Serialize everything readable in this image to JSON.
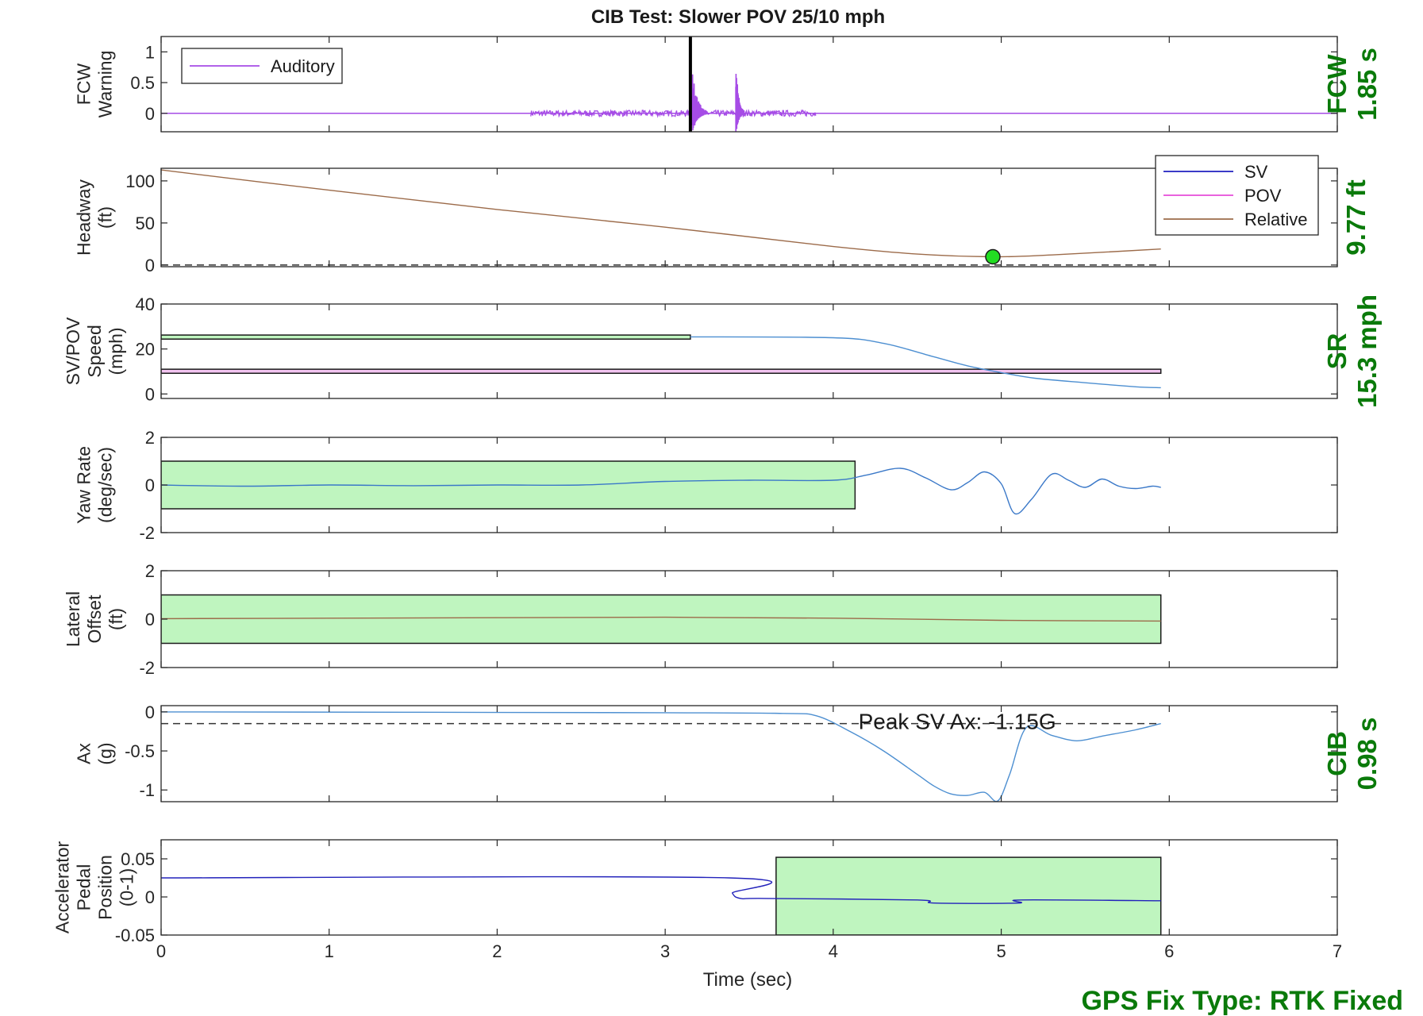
{
  "title": "CIB Test: Slower POV 25/10 mph",
  "xlabel": "Time (sec)",
  "xlim": [
    0,
    7
  ],
  "xticks": [
    "0",
    "1",
    "2",
    "3",
    "4",
    "5",
    "6",
    "7"
  ],
  "footer": "GPS Fix Type: RTK Fixed",
  "colors": {
    "accent_green": "#0a7a0a",
    "band_fill": "#bff5bf",
    "auditory": "#a64ce6",
    "sv": "#1f1fbf",
    "pov": "#e64cd9",
    "relative": "#9c6b4a",
    "speed": "#4d8fd1",
    "accel": "#2222bb"
  },
  "chart_data": [
    {
      "id": "fcw",
      "type": "line",
      "ylabel": [
        "FCW",
        "Warning"
      ],
      "ylim": [
        -0.3,
        1.25
      ],
      "yticks": [
        0,
        0.5,
        1
      ],
      "ytick_labels": [
        "0",
        "0.5",
        "1"
      ],
      "legend": {
        "position": "top-left",
        "entries": [
          {
            "name": "Auditory",
            "color": "#a64ce6"
          }
        ]
      },
      "series": [
        {
          "name": "Auditory",
          "kind": "auditory_burst",
          "t_range": [
            0,
            7
          ],
          "noise_range": [
            2.2,
            3.9
          ],
          "noise_amp": 0.05,
          "bursts": [
            {
              "t": 3.16,
              "t_end": 3.25,
              "peak": 0.75
            },
            {
              "t": 3.42,
              "t_end": 3.47,
              "peak": 0.88
            }
          ]
        }
      ],
      "vline": {
        "x": 3.15,
        "color": "#000000"
      },
      "side_label": [
        "FCW",
        "1.85 s"
      ]
    },
    {
      "id": "headway",
      "type": "line",
      "ylabel": [
        "Headway",
        "(ft)"
      ],
      "ylim": [
        -2,
        115
      ],
      "yticks": [
        0,
        50,
        100
      ],
      "ytick_labels": [
        "0",
        "50",
        "100"
      ],
      "legend": {
        "position": "top-right",
        "entries": [
          {
            "name": "SV",
            "color": "#1f1fbf"
          },
          {
            "name": "POV",
            "color": "#e64cd9"
          },
          {
            "name": "Relative",
            "color": "#9c6b4a"
          }
        ]
      },
      "series": [
        {
          "name": "Relative",
          "color": "#9c6b4a",
          "x": [
            0,
            1,
            2,
            3,
            4,
            4.5,
            4.95,
            5.3,
            5.95
          ],
          "y": [
            113,
            89,
            66,
            45,
            22,
            13,
            9.8,
            12,
            19
          ]
        }
      ],
      "hline": {
        "y": 0,
        "dashed": true,
        "x_range": [
          0,
          5.95
        ]
      },
      "marker": {
        "x": 4.95,
        "y": 9.77,
        "color": "#22dd22"
      },
      "side_label": [
        "9.77 ft"
      ]
    },
    {
      "id": "speed",
      "type": "line",
      "ylabel": [
        "SV/POV",
        "Speed",
        "(mph)"
      ],
      "ylim": [
        -2,
        40
      ],
      "yticks": [
        0,
        20,
        40
      ],
      "ytick_labels": [
        "0",
        "20",
        "40"
      ],
      "series": [
        {
          "name": "SV",
          "color": "#4d8fd1",
          "x": [
            3.15,
            4.0,
            4.3,
            4.6,
            4.8,
            5.0,
            5.2,
            5.5,
            5.8,
            5.95
          ],
          "y": [
            25.4,
            25.0,
            22.5,
            16.5,
            12.5,
            9.5,
            7.0,
            5.0,
            3.2,
            2.8
          ]
        }
      ],
      "bands": [
        {
          "x0": 0,
          "x1": 3.15,
          "y0": 24.4,
          "y1": 26.2,
          "fill": "#bff5bf"
        },
        {
          "x0": 0,
          "x1": 5.95,
          "y0": 9.2,
          "y1": 11.0,
          "fill": "#f2c4f0"
        }
      ],
      "side_label": [
        "SR",
        "15.3 mph"
      ]
    },
    {
      "id": "yaw",
      "type": "line",
      "ylabel": [
        "Yaw Rate",
        "(deg/sec)"
      ],
      "ylim": [
        -2,
        2
      ],
      "yticks": [
        -2,
        0,
        2
      ],
      "ytick_labels": [
        "-2",
        "0",
        "2"
      ],
      "series": [
        {
          "name": "SV",
          "color": "#3a78c8",
          "x": [
            0,
            0.5,
            1.0,
            1.5,
            2.0,
            2.5,
            3.0,
            3.5,
            4.0,
            4.2,
            4.4,
            4.55,
            4.7,
            4.8,
            4.9,
            5.0,
            5.08,
            5.18,
            5.3,
            5.4,
            5.5,
            5.6,
            5.7,
            5.8,
            5.9,
            5.95
          ],
          "y": [
            0,
            -0.05,
            0,
            -0.03,
            0,
            0,
            0.15,
            0.2,
            0.2,
            0.42,
            0.7,
            0.3,
            -0.2,
            0.1,
            0.55,
            0.05,
            -1.2,
            -0.6,
            0.45,
            0.2,
            -0.1,
            0.25,
            -0.05,
            -0.15,
            -0.05,
            -0.1
          ]
        }
      ],
      "bands": [
        {
          "x0": 0,
          "x1": 4.13,
          "y0": -1,
          "y1": 1,
          "fill": "#bff5bf"
        }
      ]
    },
    {
      "id": "lateral",
      "type": "line",
      "ylabel": [
        "Lateral",
        "Offset",
        "(ft)"
      ],
      "ylim": [
        -2,
        2
      ],
      "yticks": [
        -2,
        0,
        2
      ],
      "ytick_labels": [
        "-2",
        "0",
        "2"
      ],
      "series": [
        {
          "name": "Relative",
          "color": "#9c6b4a",
          "x": [
            0,
            1,
            2,
            3,
            4,
            5,
            5.95
          ],
          "y": [
            0.02,
            0.04,
            0.06,
            0.08,
            0.04,
            -0.05,
            -0.08
          ]
        }
      ],
      "bands": [
        {
          "x0": 0,
          "x1": 5.95,
          "y0": -1,
          "y1": 1,
          "fill": "#bff5bf"
        }
      ]
    },
    {
      "id": "ax",
      "type": "line",
      "ylabel": [
        "Ax",
        "(g)"
      ],
      "ylim": [
        -1.15,
        0.08
      ],
      "yticks": [
        0,
        -0.5,
        -1
      ],
      "ytick_labels": [
        "0",
        "-0.5",
        "-1"
      ],
      "series": [
        {
          "name": "SV",
          "color": "#4d8fd1",
          "x": [
            0,
            3.0,
            3.7,
            3.9,
            4.1,
            4.3,
            4.5,
            4.6,
            4.7,
            4.8,
            4.9,
            4.98,
            5.05,
            5.15,
            5.3,
            5.45,
            5.6,
            5.8,
            5.95
          ],
          "y": [
            0,
            -0.01,
            -0.02,
            -0.05,
            -0.25,
            -0.5,
            -0.8,
            -0.95,
            -1.05,
            -1.07,
            -1.03,
            -1.14,
            -0.8,
            -0.2,
            -0.3,
            -0.37,
            -0.31,
            -0.23,
            -0.15
          ]
        }
      ],
      "hline": {
        "y": -0.15,
        "dashed": true,
        "x_range": [
          0,
          5.95
        ]
      },
      "annotation": {
        "text": "Peak SV Ax: -1.15G",
        "x": 4.15,
        "y": -0.12
      },
      "side_label": [
        "CIB",
        "0.98 s"
      ]
    },
    {
      "id": "pedal",
      "type": "line",
      "ylabel": [
        "Accelerator",
        "Pedal",
        "Position",
        "(0-1)"
      ],
      "ylim": [
        -0.05,
        0.075
      ],
      "yticks": [
        0.05,
        0,
        -0.05
      ],
      "ytick_labels": [
        "0.05",
        "0",
        "-0.05"
      ],
      "series": [
        {
          "name": "SV",
          "color": "#2222bb",
          "x": [
            0,
            3.38,
            3.4,
            3.45,
            3.6,
            4.5,
            4.6,
            5.1,
            5.12,
            5.95
          ],
          "y": [
            0.025,
            0.025,
            0.005,
            -0.002,
            -0.002,
            -0.004,
            -0.008,
            -0.008,
            -0.004,
            -0.005
          ]
        }
      ],
      "bands": [
        {
          "x0": 3.66,
          "x1": 5.95,
          "y0": -0.05,
          "y1": 0.052,
          "fill": "#bff5bf"
        }
      ]
    }
  ]
}
